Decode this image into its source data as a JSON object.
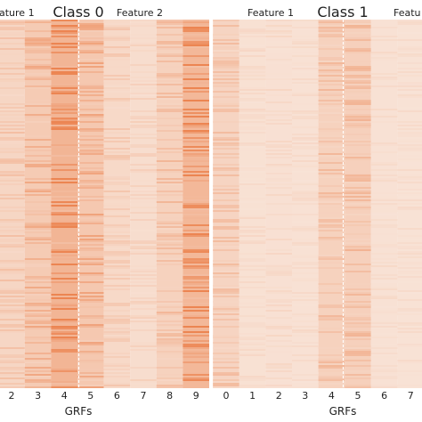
{
  "chart_data": [
    {
      "type": "heatmap",
      "title": "Class 0",
      "group_labels": [
        "ature 1",
        "Feature 2"
      ],
      "xlabel": "GRFs",
      "x_ticks": [
        "2",
        "3",
        "4",
        "5",
        "6",
        "7",
        "8",
        "9"
      ],
      "column_intensity": [
        0.35,
        0.55,
        0.95,
        0.6,
        0.3,
        0.22,
        0.42,
        0.9
      ],
      "group_divider_after_tick": "4"
    },
    {
      "type": "heatmap",
      "title": "Class 1",
      "group_labels": [
        "Feature 1",
        "Featu"
      ],
      "xlabel": "GRFs",
      "x_ticks": [
        "0",
        "1",
        "2",
        "3",
        "4",
        "5",
        "6",
        "7"
      ],
      "column_intensity": [
        0.38,
        0.15,
        0.16,
        0.14,
        0.42,
        0.45,
        0.14,
        0.13
      ],
      "group_divider_after_tick": "4"
    }
  ],
  "colors": {
    "light": "#f9e9df",
    "dark": "#ec8552",
    "background": "#ffffff",
    "divider": "#ffffff",
    "text": "#222222"
  }
}
